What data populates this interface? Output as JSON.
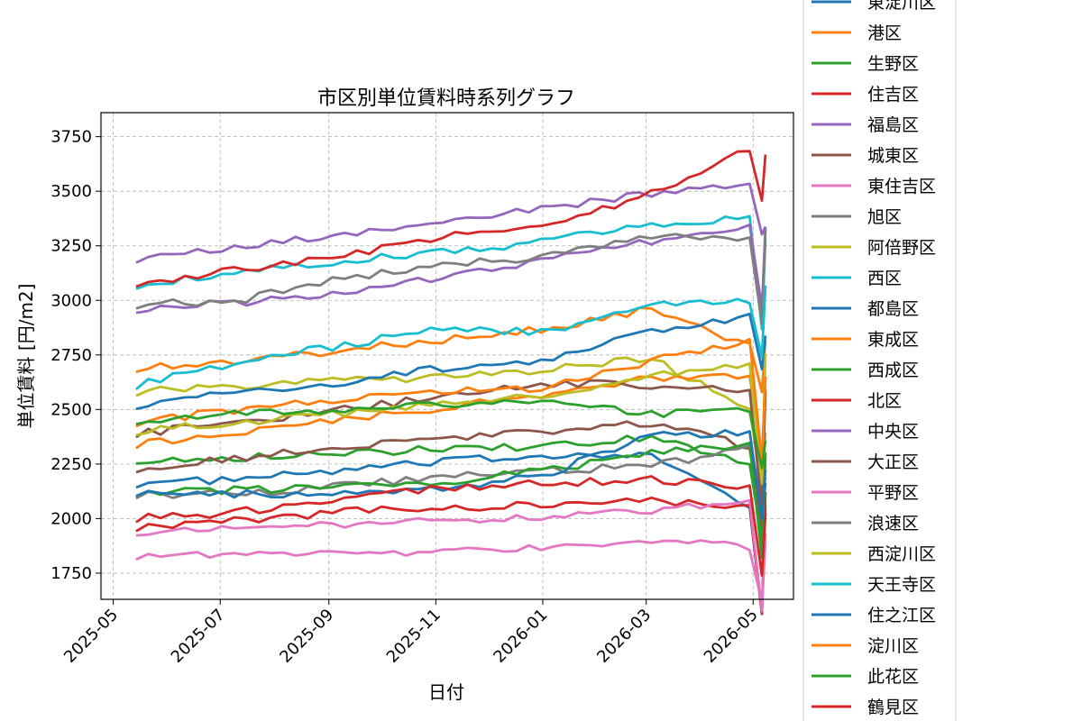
{
  "chart_data": {
    "type": "line",
    "title": "市区別単位賃料時系列グラフ",
    "xlabel": "日付",
    "ylabel": "単位賃料 [円/m2]",
    "xlim": [
      "2025-04-24",
      "2026-05-24"
    ],
    "ylim": [
      1630,
      3860
    ],
    "yticks": [
      1750,
      2000,
      2250,
      2500,
      2750,
      3000,
      3250,
      3500,
      3750
    ],
    "xticks": [
      "2025-05-01",
      "2025-07-01",
      "2025-09-01",
      "2025-11-01",
      "2026-01-01",
      "2026-03-01",
      "2026-05-01"
    ],
    "xtick_labels": [
      "2025-05",
      "2025-07",
      "2025-09",
      "2025-11",
      "2026-01",
      "2026-03",
      "2026-05"
    ],
    "grid": true,
    "legend_position": "right, outside plot",
    "start_date": "2025-05-14",
    "end_date": "2026-05-08",
    "final_drop_date": "2026-05-05",
    "series": [
      {
        "name": "東淀川区",
        "color": "#1f77b4",
        "values": [
          2160,
          2180,
          2220,
          2260,
          2290,
          2300,
          2050
        ]
      },
      {
        "name": "港区",
        "color": "#ff7f0e",
        "values": [
          2690,
          2720,
          2770,
          2820,
          2870,
          2960,
          2790
        ]
      },
      {
        "name": "生野区",
        "color": "#2ca02c",
        "values": [
          2270,
          2280,
          2300,
          2320,
          2330,
          2370,
          2260
        ]
      },
      {
        "name": "住吉区",
        "color": "#d62728",
        "values": [
          1960,
          1990,
          2030,
          2050,
          2060,
          2080,
          2060
        ]
      },
      {
        "name": "福島区",
        "color": "#9467bd",
        "values": [
          3190,
          3240,
          3300,
          3360,
          3420,
          3490,
          3520
        ]
      },
      {
        "name": "城東区",
        "color": "#8c564b",
        "values": [
          2230,
          2280,
          2320,
          2370,
          2400,
          2440,
          2330
        ]
      },
      {
        "name": "東住吉区",
        "color": "#e377c2",
        "values": [
          1940,
          1950,
          1970,
          1990,
          2010,
          2030,
          2080
        ]
      },
      {
        "name": "旭区",
        "color": "#7f7f7f",
        "values": [
          2110,
          2110,
          2150,
          2190,
          2220,
          2240,
          2320
        ]
      },
      {
        "name": "阿倍野区",
        "color": "#bcbd22",
        "values": [
          2580,
          2610,
          2630,
          2650,
          2680,
          2740,
          2510
        ]
      },
      {
        "name": "西区",
        "color": "#17becf",
        "values": [
          3070,
          3130,
          3180,
          3220,
          3270,
          3350,
          3380
        ]
      },
      {
        "name": "都島区",
        "color": "#1f77b4",
        "values": [
          2520,
          2590,
          2620,
          2690,
          2730,
          2860,
          2920
        ]
      },
      {
        "name": "東成区",
        "color": "#ff7f0e",
        "values": [
          2340,
          2400,
          2450,
          2510,
          2570,
          2640,
          2660
        ]
      },
      {
        "name": "西成区",
        "color": "#2ca02c",
        "values": [
          2120,
          2130,
          2150,
          2170,
          2220,
          2300,
          2340
        ]
      },
      {
        "name": "北区",
        "color": "#d62728",
        "values": [
          3080,
          3140,
          3200,
          3290,
          3350,
          3480,
          3700
        ]
      },
      {
        "name": "中央区",
        "color": "#9467bd",
        "values": [
          2960,
          2990,
          3040,
          3100,
          3180,
          3270,
          3350
        ]
      },
      {
        "name": "大正区",
        "color": "#8c564b",
        "values": [
          2390,
          2440,
          2500,
          2560,
          2620,
          2610,
          2580
        ]
      },
      {
        "name": "平野区",
        "color": "#e377c2",
        "values": [
          1830,
          1840,
          1840,
          1850,
          1870,
          1900,
          1870
        ]
      },
      {
        "name": "浪速区",
        "color": "#7f7f7f",
        "values": [
          2980,
          3000,
          3100,
          3160,
          3200,
          3290,
          3290
        ]
      },
      {
        "name": "西淀川区",
        "color": "#bcbd22",
        "values": [
          2400,
          2440,
          2480,
          2520,
          2560,
          2660,
          2700
        ]
      },
      {
        "name": "天王寺区",
        "color": "#17becf",
        "values": [
          2610,
          2720,
          2790,
          2880,
          2850,
          2980,
          3000
        ]
      },
      {
        "name": "住之江区",
        "color": "#1f77b4",
        "values": [
          2120,
          2110,
          2120,
          2140,
          2200,
          2380,
          2400
        ]
      },
      {
        "name": "淀川区",
        "color": "#ff7f0e",
        "values": [
          2440,
          2500,
          2540,
          2580,
          2600,
          2720,
          2810
        ]
      },
      {
        "name": "此花区",
        "color": "#2ca02c",
        "values": [
          2450,
          2480,
          2500,
          2520,
          2530,
          2480,
          2500
        ]
      },
      {
        "name": "鶴見区",
        "color": "#d62728",
        "values": [
          2000,
          2030,
          2080,
          2140,
          2160,
          2180,
          2150
        ]
      }
    ]
  }
}
